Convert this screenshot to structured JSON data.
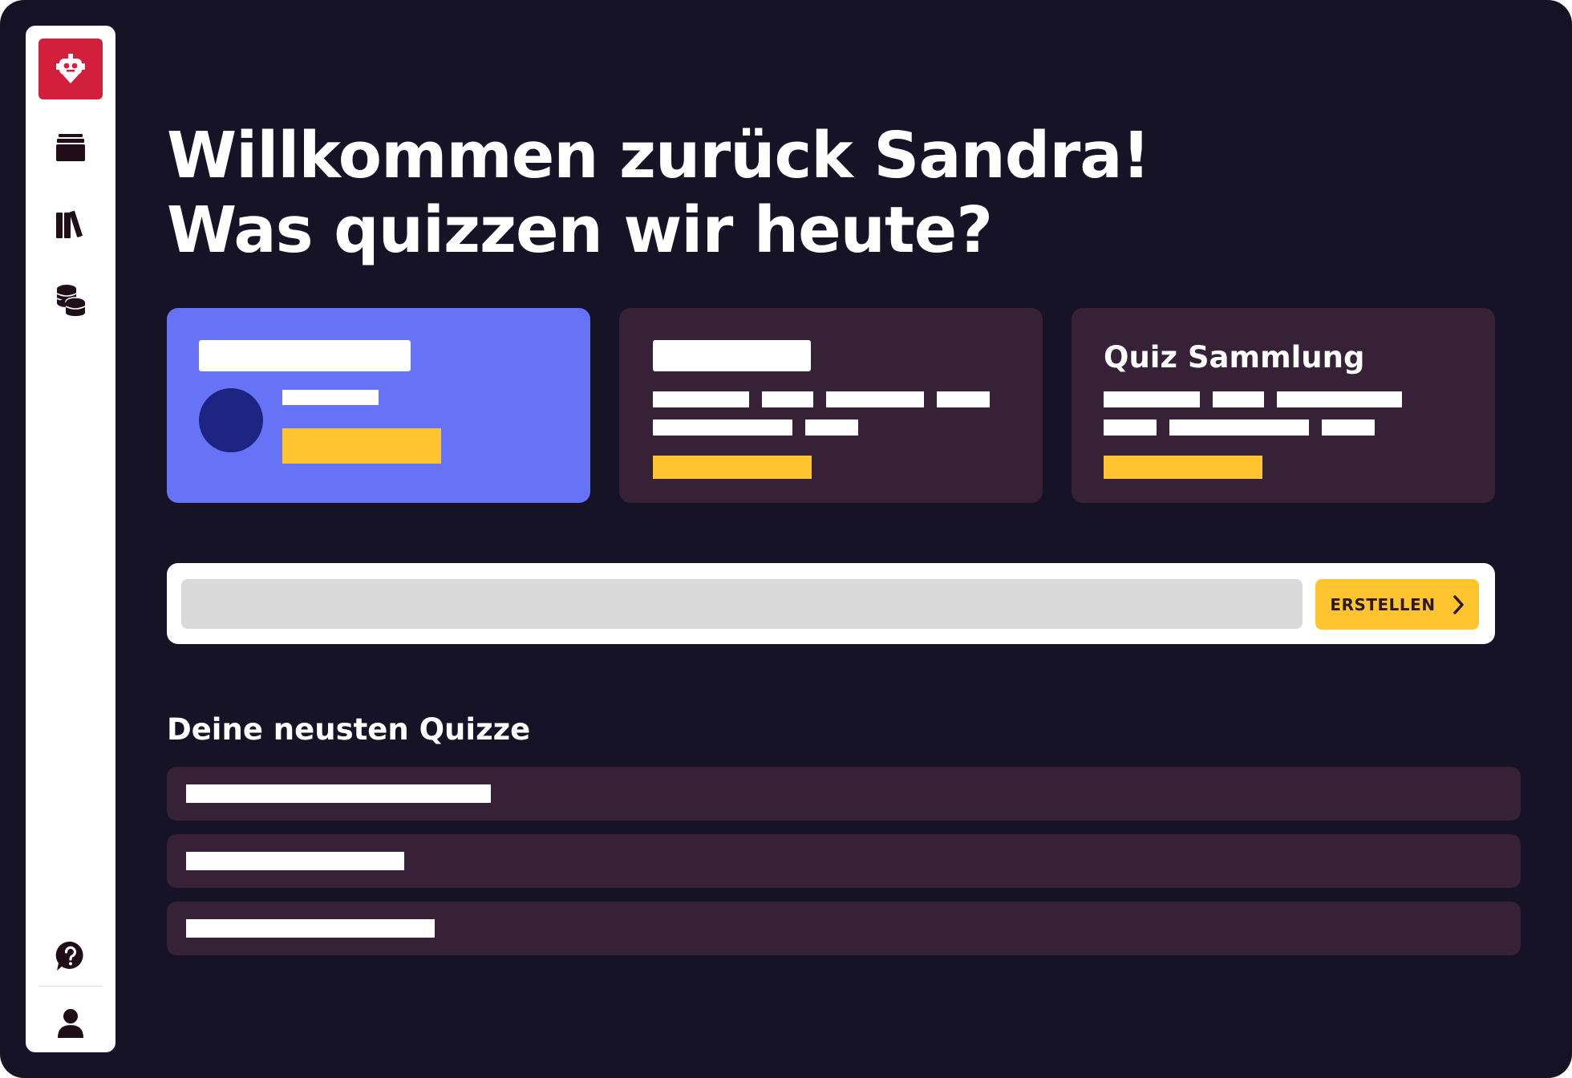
{
  "colors": {
    "background": "#171326",
    "sidebar": "#ffffff",
    "logo_accent": "#d21f3c",
    "card_primary": "#6673f7",
    "card_secondary": "#372137",
    "highlight": "#ffc430",
    "avatar": "#1d2482"
  },
  "sidebar": {
    "logo_icon": "robot-logo-icon",
    "items": [
      {
        "name": "sidebar-item-archive",
        "icon": "archive-box-icon"
      },
      {
        "name": "sidebar-item-library",
        "icon": "books-icon"
      },
      {
        "name": "sidebar-item-coins",
        "icon": "coins-icon"
      }
    ],
    "bottom_items": [
      {
        "name": "sidebar-item-help",
        "icon": "help-bubble-icon"
      },
      {
        "name": "sidebar-item-profile",
        "icon": "user-icon"
      }
    ]
  },
  "header": {
    "line1": "Willkommen zurück Sandra!",
    "line2": "Was quizzen wir heute?"
  },
  "cards": [
    {
      "title": ""
    },
    {
      "title": ""
    },
    {
      "title": "Quiz Sammlung"
    }
  ],
  "create": {
    "input_value": "",
    "button_label": "ERSTELLEN",
    "button_icon": "chevron-right-icon"
  },
  "recent": {
    "title": "Deine neusten Quizze",
    "items": [
      {
        "label": ""
      },
      {
        "label": ""
      },
      {
        "label": ""
      }
    ]
  }
}
